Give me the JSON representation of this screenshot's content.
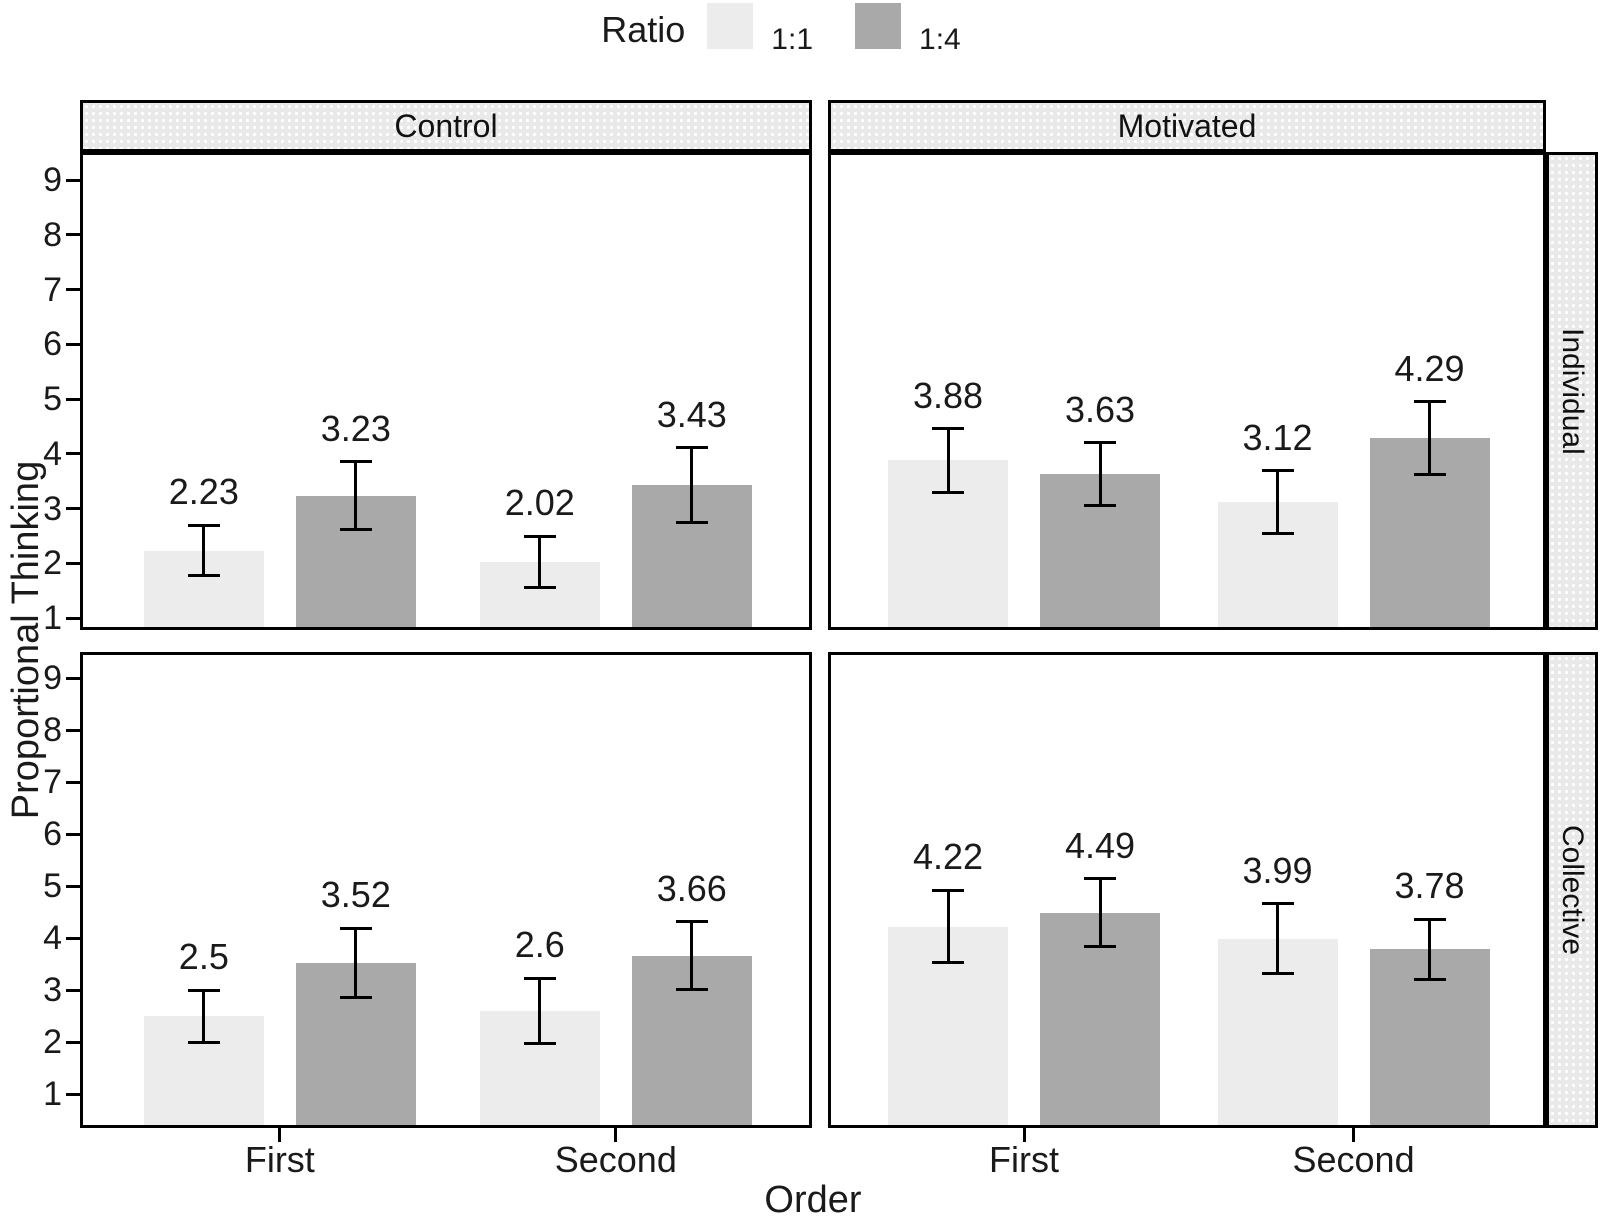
{
  "chart_data": {
    "type": "bar",
    "title": "",
    "ylabel": "Proportional Thinking",
    "xlabel": "Order",
    "yticks": [
      1,
      2,
      3,
      4,
      5,
      6,
      7,
      8,
      9
    ],
    "axis_ylim": [
      1,
      9
    ],
    "grid": false,
    "legend": {
      "title": "Ratio",
      "position": "top-center",
      "entries": [
        {
          "label": "1:1",
          "color": "#ececec"
        },
        {
          "label": "1:4",
          "color": "#a9a9a9"
        }
      ]
    },
    "facet_cols": [
      "Control",
      "Motivated"
    ],
    "facet_rows": [
      "Individual",
      "Collective"
    ],
    "categories": [
      "First",
      "Second"
    ],
    "panels": [
      {
        "col": "Control",
        "row": "Individual",
        "groups": [
          {
            "x": "First",
            "bars": [
              {
                "series": "1:1",
                "value": 2.23,
                "label": "2.23",
                "error": 0.46
              },
              {
                "series": "1:4",
                "value": 3.23,
                "label": "3.23",
                "error": 0.62
              }
            ]
          },
          {
            "x": "Second",
            "bars": [
              {
                "series": "1:1",
                "value": 2.02,
                "label": "2.02",
                "error": 0.47
              },
              {
                "series": "1:4",
                "value": 3.43,
                "label": "3.43",
                "error": 0.68
              }
            ]
          }
        ]
      },
      {
        "col": "Motivated",
        "row": "Individual",
        "groups": [
          {
            "x": "First",
            "bars": [
              {
                "series": "1:1",
                "value": 3.88,
                "label": "3.88",
                "error": 0.58
              },
              {
                "series": "1:4",
                "value": 3.63,
                "label": "3.63",
                "error": 0.57
              }
            ]
          },
          {
            "x": "Second",
            "bars": [
              {
                "series": "1:1",
                "value": 3.12,
                "label": "3.12",
                "error": 0.57
              },
              {
                "series": "1:4",
                "value": 4.29,
                "label": "4.29",
                "error": 0.66
              }
            ]
          }
        ]
      },
      {
        "col": "Control",
        "row": "Collective",
        "groups": [
          {
            "x": "First",
            "bars": [
              {
                "series": "1:1",
                "value": 2.5,
                "label": "2.5",
                "error": 0.5
              },
              {
                "series": "1:4",
                "value": 3.52,
                "label": "3.52",
                "error": 0.67
              }
            ]
          },
          {
            "x": "Second",
            "bars": [
              {
                "series": "1:1",
                "value": 2.6,
                "label": "2.6",
                "error": 0.63
              },
              {
                "series": "1:4",
                "value": 3.66,
                "label": "3.66",
                "error": 0.65
              }
            ]
          }
        ]
      },
      {
        "col": "Motivated",
        "row": "Collective",
        "groups": [
          {
            "x": "First",
            "bars": [
              {
                "series": "1:1",
                "value": 4.22,
                "label": "4.22",
                "error": 0.7
              },
              {
                "series": "1:4",
                "value": 4.49,
                "label": "4.49",
                "error": 0.65
              }
            ]
          },
          {
            "x": "Second",
            "bars": [
              {
                "series": "1:1",
                "value": 3.99,
                "label": "3.99",
                "error": 0.67
              },
              {
                "series": "1:4",
                "value": 3.78,
                "label": "3.78",
                "error": 0.58
              }
            ]
          }
        ]
      }
    ],
    "colors": {
      "bar_light": "#ececec",
      "bar_dark": "#a9a9a9",
      "strip_bg": "#e9e9e9",
      "border": "#000000",
      "text": "#1a1a1a"
    }
  }
}
